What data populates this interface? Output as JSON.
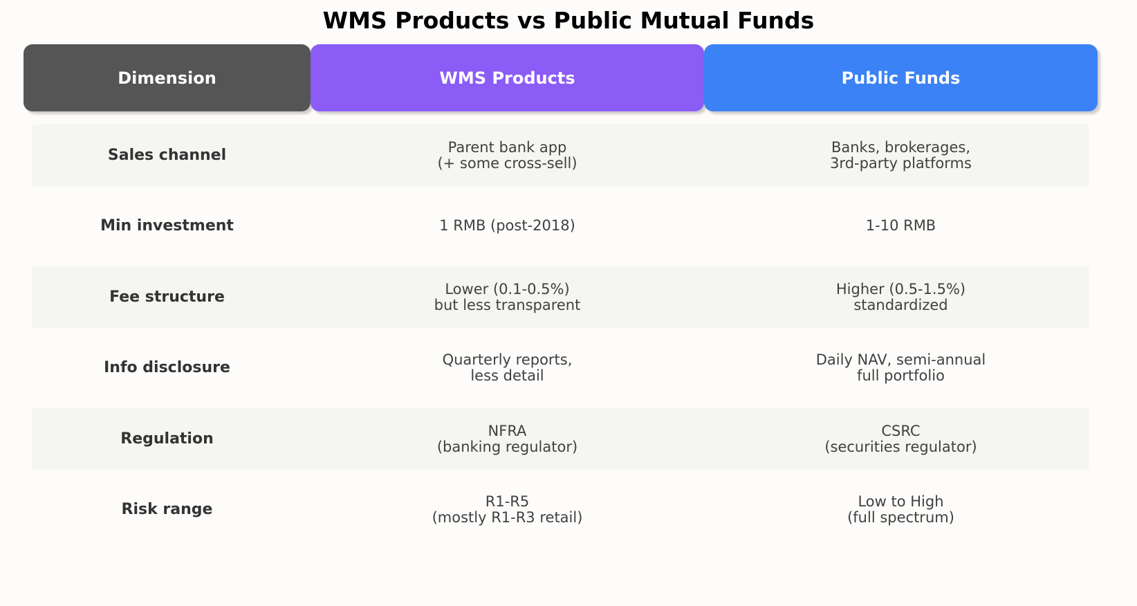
{
  "chart_data": {
    "type": "table",
    "title": "WMS Products vs Public Mutual Funds",
    "columns": [
      {
        "label": "Dimension",
        "color": "#555555"
      },
      {
        "label": "WMS Products",
        "color": "#8b5cf6"
      },
      {
        "label": "Public Funds",
        "color": "#3b82f6"
      }
    ],
    "rows": [
      {
        "dimension": "Sales channel",
        "wms": [
          "Parent bank app",
          "(+ some cross-sell)"
        ],
        "public": [
          "Banks, brokerages,",
          "3rd-party platforms"
        ]
      },
      {
        "dimension": "Min investment",
        "wms": [
          "1 RMB (post-2018)"
        ],
        "public": [
          "1-10 RMB"
        ]
      },
      {
        "dimension": "Fee structure",
        "wms": [
          "Lower (0.1-0.5%)",
          "but less transparent"
        ],
        "public": [
          "Higher (0.5-1.5%)",
          "standardized"
        ]
      },
      {
        "dimension": "Info disclosure",
        "wms": [
          "Quarterly reports,",
          "less detail"
        ],
        "public": [
          "Daily NAV, semi-annual",
          "full portfolio"
        ]
      },
      {
        "dimension": "Regulation",
        "wms": [
          "NFRA",
          "(banking regulator)"
        ],
        "public": [
          "CSRC",
          "(securities regulator)"
        ]
      },
      {
        "dimension": "Risk range",
        "wms": [
          "R1-R5",
          "(mostly R1-R3 retail)"
        ],
        "public": [
          "Low to High",
          "(full spectrum)"
        ]
      }
    ],
    "row_shading": "#f5f5f2"
  }
}
